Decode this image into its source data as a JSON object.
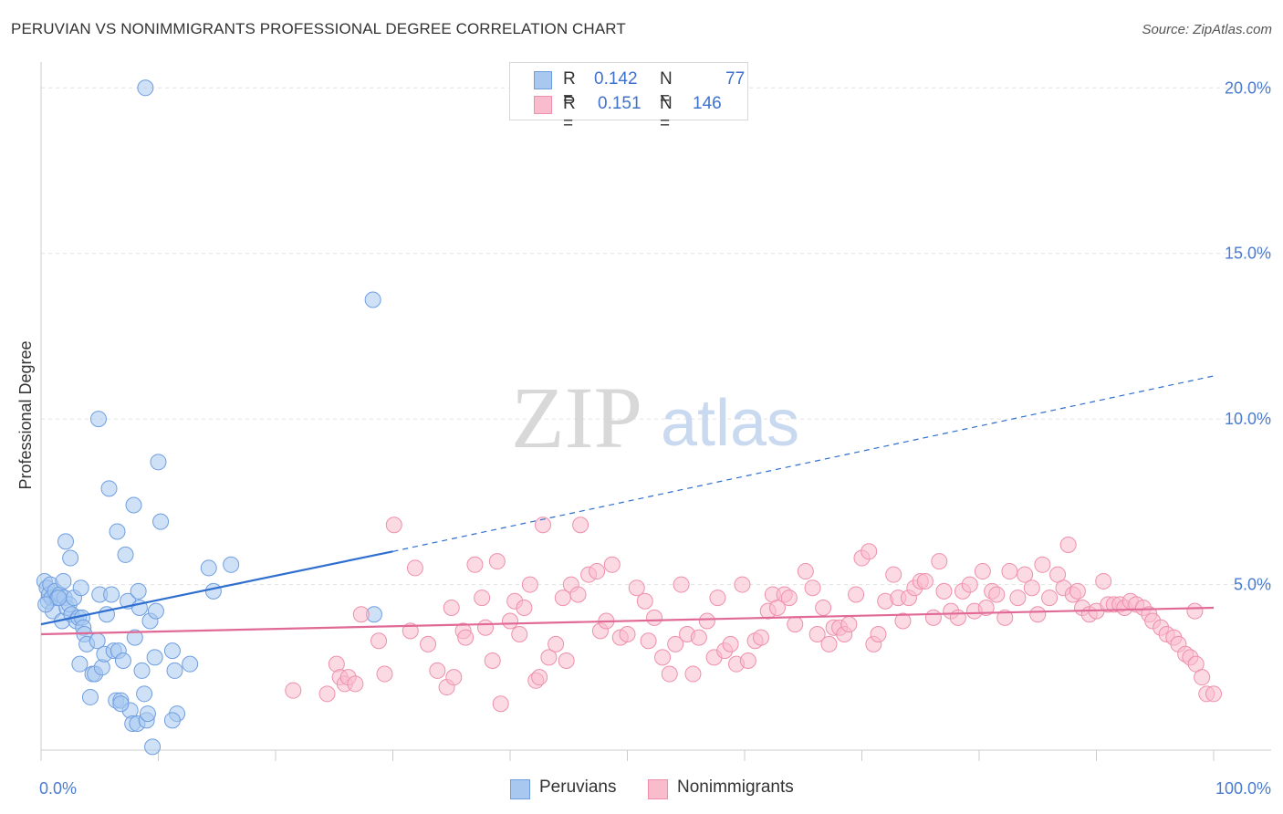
{
  "title": "PERUVIAN VS NONIMMIGRANTS PROFESSIONAL DEGREE CORRELATION CHART",
  "source": "Source: ZipAtlas.com",
  "watermark": {
    "zip": "ZIP",
    "atlas": "atlas"
  },
  "legend_top": {
    "rows": [
      {
        "r_label": "R =",
        "r_value": "0.142",
        "n_label": "N =",
        "n_value": "77",
        "color": "#a8c8f0",
        "stroke": "#6f9ee0"
      },
      {
        "r_label": "R =",
        "r_value": "0.151",
        "n_label": "N =",
        "n_value": "146",
        "color": "#f9bccd",
        "stroke": "#ee90ab"
      }
    ]
  },
  "legend_bottom": {
    "items": [
      {
        "label": "Peruvians",
        "color": "#a8c8f0",
        "stroke": "#6f9ee0"
      },
      {
        "label": "Nonimmigrants",
        "color": "#f9bccd",
        "stroke": "#ee90ab"
      }
    ]
  },
  "chart_data": {
    "type": "scatter",
    "title": "PERUVIAN VS NONIMMIGRANTS PROFESSIONAL DEGREE CORRELATION CHART",
    "xlabel": "",
    "ylabel": "Professional Degree",
    "xlim": [
      0,
      100
    ],
    "ylim": [
      0,
      21
    ],
    "x_tick_labels": [
      "0.0%",
      "100.0%"
    ],
    "y_ticks": [
      5,
      10,
      15,
      20
    ],
    "y_tick_labels": [
      "5.0%",
      "10.0%",
      "15.0%",
      "20.0%"
    ],
    "grid": true,
    "series": [
      {
        "name": "Peruvians",
        "color": "#6f9ee0",
        "fill": "#a8c8f0",
        "trend": {
          "x0": 0,
          "y0": 3.8,
          "x1": 30,
          "y1": 6.0,
          "dash_x1": 100,
          "dash_y1": 11.3,
          "color": "#2f6fd0"
        },
        "points": [
          [
            0.3,
            5.1
          ],
          [
            0.5,
            4.9
          ],
          [
            0.6,
            4.5
          ],
          [
            0.7,
            4.7
          ],
          [
            0.8,
            5.0
          ],
          [
            0.9,
            4.6
          ],
          [
            1.0,
            4.2
          ],
          [
            1.2,
            4.8
          ],
          [
            1.4,
            4.6
          ],
          [
            1.6,
            4.7
          ],
          [
            1.8,
            3.9
          ],
          [
            2.0,
            4.6
          ],
          [
            2.2,
            4.3
          ],
          [
            2.4,
            4.4
          ],
          [
            2.6,
            4.1
          ],
          [
            2.8,
            4.6
          ],
          [
            3.0,
            3.9
          ],
          [
            3.2,
            4.0
          ],
          [
            3.4,
            4.9
          ],
          [
            3.5,
            4.0
          ],
          [
            3.6,
            3.7
          ],
          [
            3.7,
            3.5
          ],
          [
            3.9,
            3.2
          ],
          [
            4.2,
            1.6
          ],
          [
            4.4,
            2.3
          ],
          [
            4.6,
            2.3
          ],
          [
            4.8,
            3.3
          ],
          [
            5.0,
            4.7
          ],
          [
            5.2,
            2.5
          ],
          [
            5.4,
            2.9
          ],
          [
            5.6,
            4.1
          ],
          [
            5.8,
            7.9
          ],
          [
            6.0,
            4.7
          ],
          [
            6.2,
            3.0
          ],
          [
            6.4,
            1.5
          ],
          [
            6.5,
            6.6
          ],
          [
            6.6,
            3.0
          ],
          [
            6.8,
            1.5
          ],
          [
            7.0,
            2.7
          ],
          [
            7.2,
            5.9
          ],
          [
            7.4,
            4.5
          ],
          [
            7.6,
            1.2
          ],
          [
            7.8,
            0.8
          ],
          [
            7.9,
            7.4
          ],
          [
            8.0,
            3.4
          ],
          [
            8.2,
            0.8
          ],
          [
            8.3,
            4.8
          ],
          [
            8.4,
            4.3
          ],
          [
            8.6,
            2.4
          ],
          [
            8.8,
            1.7
          ],
          [
            8.9,
            20.0
          ],
          [
            9.0,
            0.9
          ],
          [
            9.3,
            3.9
          ],
          [
            9.5,
            0.1
          ],
          [
            9.7,
            2.8
          ],
          [
            9.8,
            4.2
          ],
          [
            10.0,
            8.7
          ],
          [
            10.2,
            6.9
          ],
          [
            11.2,
            3.0
          ],
          [
            11.4,
            2.4
          ],
          [
            11.6,
            1.1
          ],
          [
            11.2,
            0.9
          ],
          [
            12.7,
            2.6
          ],
          [
            14.3,
            5.5
          ],
          [
            14.7,
            4.8
          ],
          [
            16.2,
            5.6
          ],
          [
            28.3,
            13.6
          ],
          [
            28.4,
            4.1
          ],
          [
            2.1,
            6.3
          ],
          [
            2.5,
            5.8
          ],
          [
            4.9,
            10.0
          ],
          [
            6.8,
            1.4
          ],
          [
            3.3,
            2.6
          ],
          [
            1.9,
            5.1
          ],
          [
            1.5,
            4.6
          ],
          [
            0.4,
            4.4
          ],
          [
            9.1,
            1.1
          ]
        ]
      },
      {
        "name": "Nonimmigrants",
        "color": "#ee90ab",
        "fill": "#f9bccd",
        "trend": {
          "x0": 0,
          "y0": 3.5,
          "x1": 100,
          "y1": 4.3,
          "color": "#e06a95"
        },
        "points": [
          [
            21.5,
            1.8
          ],
          [
            24.4,
            1.7
          ],
          [
            25.2,
            2.6
          ],
          [
            25.5,
            2.2
          ],
          [
            25.9,
            2.0
          ],
          [
            26.2,
            2.2
          ],
          [
            26.8,
            2.0
          ],
          [
            27.3,
            4.1
          ],
          [
            28.8,
            3.3
          ],
          [
            29.3,
            2.3
          ],
          [
            30.1,
            6.8
          ],
          [
            31.5,
            3.6
          ],
          [
            31.9,
            5.5
          ],
          [
            33.0,
            3.2
          ],
          [
            33.8,
            2.4
          ],
          [
            34.6,
            1.9
          ],
          [
            35.0,
            4.3
          ],
          [
            35.2,
            2.2
          ],
          [
            36.0,
            3.6
          ],
          [
            36.2,
            3.4
          ],
          [
            37.0,
            5.6
          ],
          [
            37.6,
            4.6
          ],
          [
            37.9,
            3.7
          ],
          [
            38.5,
            2.7
          ],
          [
            39.2,
            1.4
          ],
          [
            38.9,
            5.7
          ],
          [
            40.0,
            3.9
          ],
          [
            40.4,
            4.5
          ],
          [
            40.8,
            3.5
          ],
          [
            41.2,
            4.3
          ],
          [
            41.7,
            5.0
          ],
          [
            42.2,
            2.1
          ],
          [
            42.5,
            2.2
          ],
          [
            42.8,
            6.8
          ],
          [
            43.3,
            2.8
          ],
          [
            43.9,
            3.2
          ],
          [
            44.5,
            4.6
          ],
          [
            44.8,
            2.7
          ],
          [
            45.2,
            5.0
          ],
          [
            45.8,
            4.7
          ],
          [
            46.0,
            6.8
          ],
          [
            46.7,
            5.3
          ],
          [
            47.4,
            5.4
          ],
          [
            47.7,
            3.6
          ],
          [
            48.2,
            3.9
          ],
          [
            48.7,
            5.6
          ],
          [
            49.4,
            3.4
          ],
          [
            50.0,
            3.5
          ],
          [
            50.8,
            4.9
          ],
          [
            51.5,
            4.5
          ],
          [
            51.8,
            3.3
          ],
          [
            52.3,
            4.0
          ],
          [
            53.0,
            2.8
          ],
          [
            53.6,
            2.3
          ],
          [
            54.1,
            3.2
          ],
          [
            54.6,
            5.0
          ],
          [
            55.1,
            3.5
          ],
          [
            55.6,
            2.3
          ],
          [
            56.1,
            3.4
          ],
          [
            56.8,
            3.9
          ],
          [
            57.4,
            2.8
          ],
          [
            57.7,
            4.6
          ],
          [
            58.3,
            3.0
          ],
          [
            58.8,
            3.2
          ],
          [
            59.3,
            2.6
          ],
          [
            59.8,
            5.0
          ],
          [
            60.3,
            2.7
          ],
          [
            60.9,
            3.3
          ],
          [
            61.4,
            3.4
          ],
          [
            62.0,
            4.2
          ],
          [
            62.4,
            4.7
          ],
          [
            62.8,
            4.3
          ],
          [
            63.4,
            4.7
          ],
          [
            63.8,
            4.6
          ],
          [
            64.3,
            3.8
          ],
          [
            65.2,
            5.4
          ],
          [
            65.8,
            4.9
          ],
          [
            66.2,
            3.5
          ],
          [
            66.7,
            4.3
          ],
          [
            67.2,
            3.2
          ],
          [
            67.6,
            3.7
          ],
          [
            68.1,
            3.7
          ],
          [
            68.5,
            3.5
          ],
          [
            68.9,
            3.8
          ],
          [
            69.5,
            4.7
          ],
          [
            70.0,
            5.8
          ],
          [
            70.6,
            6.0
          ],
          [
            71.0,
            3.2
          ],
          [
            71.4,
            3.5
          ],
          [
            72.0,
            4.5
          ],
          [
            72.7,
            5.3
          ],
          [
            73.1,
            4.6
          ],
          [
            73.5,
            3.9
          ],
          [
            74.0,
            4.6
          ],
          [
            74.5,
            4.9
          ],
          [
            75.0,
            5.1
          ],
          [
            75.4,
            5.1
          ],
          [
            76.1,
            4.0
          ],
          [
            76.6,
            5.7
          ],
          [
            77.0,
            4.8
          ],
          [
            77.6,
            4.2
          ],
          [
            78.2,
            4.0
          ],
          [
            78.6,
            4.8
          ],
          [
            79.2,
            5.0
          ],
          [
            79.6,
            4.2
          ],
          [
            80.3,
            5.4
          ],
          [
            80.6,
            4.3
          ],
          [
            81.1,
            4.8
          ],
          [
            81.5,
            4.7
          ],
          [
            82.2,
            4.0
          ],
          [
            82.6,
            5.4
          ],
          [
            83.3,
            4.6
          ],
          [
            83.9,
            5.3
          ],
          [
            84.5,
            4.9
          ],
          [
            85.0,
            4.1
          ],
          [
            85.4,
            5.6
          ],
          [
            86.0,
            4.6
          ],
          [
            86.7,
            5.3
          ],
          [
            87.2,
            4.9
          ],
          [
            87.6,
            6.2
          ],
          [
            88.0,
            4.7
          ],
          [
            88.4,
            4.8
          ],
          [
            88.8,
            4.3
          ],
          [
            89.4,
            4.1
          ],
          [
            90.0,
            4.2
          ],
          [
            90.6,
            5.1
          ],
          [
            91.0,
            4.4
          ],
          [
            91.5,
            4.4
          ],
          [
            92.0,
            4.4
          ],
          [
            92.4,
            4.3
          ],
          [
            92.9,
            4.5
          ],
          [
            93.4,
            4.4
          ],
          [
            94.0,
            4.3
          ],
          [
            94.5,
            4.1
          ],
          [
            94.8,
            3.9
          ],
          [
            95.5,
            3.7
          ],
          [
            96.0,
            3.5
          ],
          [
            96.6,
            3.4
          ],
          [
            97.0,
            3.2
          ],
          [
            97.6,
            2.9
          ],
          [
            98.0,
            2.8
          ],
          [
            98.5,
            2.6
          ],
          [
            99.0,
            2.2
          ],
          [
            99.4,
            1.7
          ],
          [
            100.0,
            1.7
          ],
          [
            98.4,
            4.2
          ]
        ]
      }
    ]
  }
}
